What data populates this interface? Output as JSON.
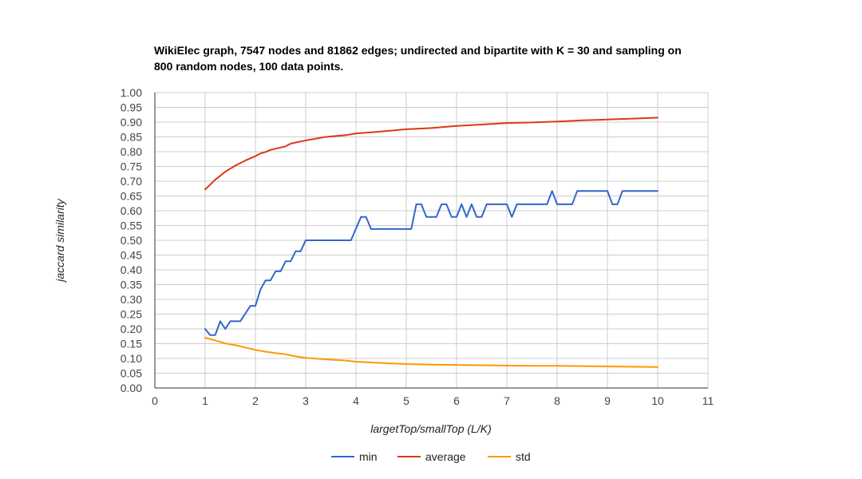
{
  "chart_data": {
    "type": "line",
    "title_lines": [
      "WikiElec graph, 7547 nodes and 81862 edges; undirected and bipartite with K = 30 and sampling on",
      "800 random nodes, 100 data points."
    ],
    "xlabel": "largetTop/smallTop (L/K)",
    "ylabel": "jaccard similarity",
    "xlim": [
      0,
      11
    ],
    "ylim": [
      0,
      1
    ],
    "x_ticks": [
      "0",
      "1",
      "2",
      "3",
      "4",
      "5",
      "6",
      "7",
      "8",
      "9",
      "10",
      "11"
    ],
    "y_ticks": [
      "0.00",
      "0.05",
      "0.10",
      "0.15",
      "0.20",
      "0.25",
      "0.30",
      "0.35",
      "0.40",
      "0.45",
      "0.50",
      "0.55",
      "0.60",
      "0.65",
      "0.70",
      "0.75",
      "0.80",
      "0.85",
      "0.90",
      "0.95",
      "1.00"
    ],
    "grid": true,
    "legend_position": "bottom",
    "series": [
      {
        "name": "min",
        "color": "#3366cc",
        "points": [
          [
            1.0,
            0.2
          ],
          [
            1.1,
            0.179
          ],
          [
            1.2,
            0.179
          ],
          [
            1.3,
            0.226
          ],
          [
            1.4,
            0.2
          ],
          [
            1.5,
            0.226
          ],
          [
            1.7,
            0.226
          ],
          [
            1.9,
            0.278
          ],
          [
            2.0,
            0.278
          ],
          [
            2.1,
            0.333
          ],
          [
            2.2,
            0.364
          ],
          [
            2.3,
            0.364
          ],
          [
            2.4,
            0.395
          ],
          [
            2.5,
            0.395
          ],
          [
            2.6,
            0.429
          ],
          [
            2.7,
            0.429
          ],
          [
            2.8,
            0.463
          ],
          [
            2.9,
            0.463
          ],
          [
            3.0,
            0.5
          ],
          [
            3.9,
            0.5
          ],
          [
            4.1,
            0.579
          ],
          [
            4.2,
            0.579
          ],
          [
            4.3,
            0.538
          ],
          [
            5.1,
            0.538
          ],
          [
            5.2,
            0.622
          ],
          [
            5.3,
            0.622
          ],
          [
            5.4,
            0.579
          ],
          [
            5.6,
            0.579
          ],
          [
            5.7,
            0.622
          ],
          [
            5.8,
            0.622
          ],
          [
            5.9,
            0.579
          ],
          [
            6.0,
            0.579
          ],
          [
            6.1,
            0.622
          ],
          [
            6.2,
            0.579
          ],
          [
            6.3,
            0.622
          ],
          [
            6.4,
            0.579
          ],
          [
            6.5,
            0.579
          ],
          [
            6.6,
            0.622
          ],
          [
            7.0,
            0.622
          ],
          [
            7.1,
            0.579
          ],
          [
            7.2,
            0.622
          ],
          [
            7.8,
            0.622
          ],
          [
            7.9,
            0.667
          ],
          [
            8.0,
            0.622
          ],
          [
            8.3,
            0.622
          ],
          [
            8.4,
            0.667
          ],
          [
            9.0,
            0.667
          ],
          [
            9.1,
            0.622
          ],
          [
            9.2,
            0.622
          ],
          [
            9.3,
            0.667
          ],
          [
            10.0,
            0.667
          ]
        ]
      },
      {
        "name": "average",
        "color": "#dc3912",
        "points": [
          [
            1.0,
            0.672
          ],
          [
            1.2,
            0.705
          ],
          [
            1.4,
            0.732
          ],
          [
            1.6,
            0.753
          ],
          [
            1.8,
            0.77
          ],
          [
            2.0,
            0.785
          ],
          [
            2.1,
            0.794
          ],
          [
            2.2,
            0.799
          ],
          [
            2.3,
            0.806
          ],
          [
            2.4,
            0.81
          ],
          [
            2.5,
            0.814
          ],
          [
            2.6,
            0.818
          ],
          [
            2.7,
            0.827
          ],
          [
            2.8,
            0.831
          ],
          [
            3.0,
            0.838
          ],
          [
            3.2,
            0.844
          ],
          [
            3.4,
            0.85
          ],
          [
            3.6,
            0.853
          ],
          [
            3.8,
            0.856
          ],
          [
            4.0,
            0.862
          ],
          [
            4.2,
            0.864
          ],
          [
            4.5,
            0.868
          ],
          [
            5.0,
            0.876
          ],
          [
            5.5,
            0.88
          ],
          [
            6.0,
            0.887
          ],
          [
            6.5,
            0.892
          ],
          [
            7.0,
            0.897
          ],
          [
            7.5,
            0.899
          ],
          [
            8.0,
            0.902
          ],
          [
            8.5,
            0.906
          ],
          [
            9.0,
            0.909
          ],
          [
            9.5,
            0.912
          ],
          [
            10.0,
            0.915
          ]
        ]
      },
      {
        "name": "std",
        "color": "#ff9900",
        "points": [
          [
            1.0,
            0.17
          ],
          [
            1.2,
            0.161
          ],
          [
            1.4,
            0.151
          ],
          [
            1.6,
            0.145
          ],
          [
            1.8,
            0.137
          ],
          [
            2.0,
            0.129
          ],
          [
            2.2,
            0.123
          ],
          [
            2.4,
            0.118
          ],
          [
            2.6,
            0.114
          ],
          [
            2.8,
            0.107
          ],
          [
            3.0,
            0.102
          ],
          [
            3.4,
            0.097
          ],
          [
            3.8,
            0.093
          ],
          [
            4.0,
            0.089
          ],
          [
            4.5,
            0.085
          ],
          [
            5.0,
            0.081
          ],
          [
            5.5,
            0.079
          ],
          [
            6.0,
            0.078
          ],
          [
            6.5,
            0.077
          ],
          [
            7.0,
            0.076
          ],
          [
            7.5,
            0.075
          ],
          [
            8.0,
            0.075
          ],
          [
            8.5,
            0.074
          ],
          [
            9.0,
            0.073
          ],
          [
            9.5,
            0.072
          ],
          [
            10.0,
            0.071
          ]
        ]
      }
    ]
  }
}
